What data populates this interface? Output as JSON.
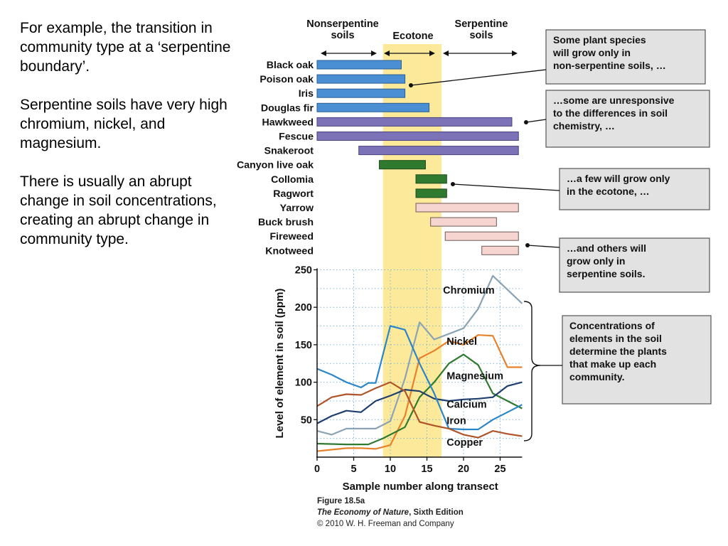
{
  "text_panel": {
    "paragraphs": [
      "For example, the transition in community type at a ‘serpentine boundary’.",
      "Serpentine soils have very high chromium, nickel, and magnesium.",
      "There is usually an abrupt change in soil concentrations, creating an abrupt change in community type."
    ]
  },
  "figure": {
    "zones": {
      "nonserpentine": [
        "Nonserpentine",
        "soils"
      ],
      "ecotone": "Ecotone",
      "serpentine": [
        "Serpentine",
        "soils"
      ]
    },
    "callouts": [
      {
        "lines": [
          "Some plant species",
          "will grow only in",
          "non-serpentine soils, …"
        ]
      },
      {
        "lines": [
          "…some are unresponsive",
          "to the differences in soil",
          "chemistry, …"
        ]
      },
      {
        "lines": [
          "…a few will grow only",
          "in the ecotone, …"
        ]
      },
      {
        "lines": [
          "…and others will",
          "grow only in",
          "serpentine soils."
        ]
      },
      {
        "lines": [
          "Concentrations of",
          "elements in the soil",
          "determine the plants",
          "that make up each",
          "community."
        ]
      }
    ],
    "caption": {
      "figure_label": "Figure 18.5a",
      "book_title": "The Economy of Nature",
      "edition": ", Sixth Edition",
      "copyright": "© 2010 W. H. Freeman and Company"
    }
  },
  "colors": {
    "ecotone": "#fde99a",
    "nonserp_bar": "#4a8fd4",
    "all_bar": "#7b72b8",
    "ecotone_bar": "#2f7a2f",
    "serp_bar": "#f6d5d1",
    "chromium": "#8aa3b5",
    "nickel": "#e8822a",
    "magnesium": "#2f7a2f",
    "calcium": "#1f3f6e",
    "iron": "#2b86c8",
    "copper": "#b0552a",
    "callout_bg": "#e2e2e2"
  },
  "chart_data": [
    {
      "type": "bar",
      "orientation": "horizontal-range",
      "species": [
        {
          "name": "Black oak",
          "start": 0,
          "end": 11.5,
          "group": "nonserpentine"
        },
        {
          "name": "Poison oak",
          "start": 0,
          "end": 12,
          "group": "nonserpentine"
        },
        {
          "name": "Iris",
          "start": 0,
          "end": 12,
          "group": "nonserpentine"
        },
        {
          "name": "Douglas fir",
          "start": 0,
          "end": 15.3,
          "group": "nonserpentine"
        },
        {
          "name": "Hawkweed",
          "start": 0,
          "end": 26.6,
          "group": "all"
        },
        {
          "name": "Fescue",
          "start": 0,
          "end": 27.5,
          "group": "all"
        },
        {
          "name": "Snakeroot",
          "start": 5.7,
          "end": 27.5,
          "group": "all"
        },
        {
          "name": "Canyon live oak",
          "start": 8.5,
          "end": 14.8,
          "group": "ecotone"
        },
        {
          "name": "Collomia",
          "start": 13.5,
          "end": 17.7,
          "group": "ecotone"
        },
        {
          "name": "Ragwort",
          "start": 13.5,
          "end": 17.7,
          "group": "ecotone"
        },
        {
          "name": "Yarrow",
          "start": 13.5,
          "end": 27.5,
          "group": "serpentine"
        },
        {
          "name": "Buck brush",
          "start": 15.5,
          "end": 24.5,
          "group": "serpentine"
        },
        {
          "name": "Fireweed",
          "start": 17.5,
          "end": 27.5,
          "group": "serpentine"
        },
        {
          "name": "Knotweed",
          "start": 22.5,
          "end": 27.5,
          "group": "serpentine"
        }
      ],
      "ecotone_range": [
        9,
        17
      ]
    },
    {
      "type": "line",
      "xlabel": "Sample number along transect",
      "ylabel": "Level of element in soil (ppm)",
      "xlim": [
        0,
        28
      ],
      "ylim": [
        0,
        250
      ],
      "xticks": [
        0,
        5,
        10,
        15,
        20,
        25
      ],
      "yticks": [
        50,
        100,
        150,
        200,
        250
      ],
      "grid": true,
      "series": [
        {
          "name": "Chromium",
          "color_key": "chromium",
          "points": [
            [
              0,
              35
            ],
            [
              2,
              30
            ],
            [
              4,
              38
            ],
            [
              6,
              38
            ],
            [
              8,
              38
            ],
            [
              10,
              48
            ],
            [
              12,
              105
            ],
            [
              14,
              180
            ],
            [
              16,
              157
            ],
            [
              20,
              172
            ],
            [
              22,
              198
            ],
            [
              24,
              242
            ],
            [
              28,
              205
            ]
          ]
        },
        {
          "name": "Nickel",
          "color_key": "nickel",
          "points": [
            [
              0,
              8
            ],
            [
              2,
              10
            ],
            [
              4,
              12
            ],
            [
              6,
              12
            ],
            [
              8,
              11
            ],
            [
              10,
              16
            ],
            [
              12,
              55
            ],
            [
              14,
              132
            ],
            [
              16,
              142
            ],
            [
              18,
              155
            ],
            [
              20,
              150
            ],
            [
              22,
              163
            ],
            [
              24,
              162
            ],
            [
              26,
              120
            ],
            [
              28,
              120
            ]
          ]
        },
        {
          "name": "Magnesium",
          "color_key": "magnesium",
          "points": [
            [
              0,
              18
            ],
            [
              4,
              17
            ],
            [
              7,
              17
            ],
            [
              9,
              25
            ],
            [
              12,
              40
            ],
            [
              14,
              80
            ],
            [
              16,
              100
            ],
            [
              18,
              125
            ],
            [
              20,
              137
            ],
            [
              22,
              123
            ],
            [
              24,
              85
            ],
            [
              26,
              75
            ],
            [
              28,
              65
            ]
          ]
        },
        {
          "name": "Calcium",
          "color_key": "calcium",
          "points": [
            [
              0,
              45
            ],
            [
              2,
              55
            ],
            [
              4,
              62
            ],
            [
              6,
              60
            ],
            [
              8,
              75
            ],
            [
              10,
              82
            ],
            [
              12,
              90
            ],
            [
              14,
              88
            ],
            [
              16,
              78
            ],
            [
              18,
              75
            ],
            [
              20,
              77
            ],
            [
              22,
              78
            ],
            [
              24,
              80
            ],
            [
              26,
              95
            ],
            [
              28,
              100
            ]
          ]
        },
        {
          "name": "Iron",
          "color_key": "iron",
          "points": [
            [
              0,
              118
            ],
            [
              2,
              110
            ],
            [
              4,
              100
            ],
            [
              6,
              93
            ],
            [
              7,
              99
            ],
            [
              8,
              99
            ],
            [
              10,
              175
            ],
            [
              12,
              170
            ],
            [
              14,
              125
            ],
            [
              16,
              85
            ],
            [
              18,
              38
            ],
            [
              20,
              37
            ],
            [
              22,
              37
            ],
            [
              24,
              50
            ],
            [
              26,
              60
            ],
            [
              28,
              70
            ]
          ]
        },
        {
          "name": "Copper",
          "color_key": "copper",
          "points": [
            [
              0,
              68
            ],
            [
              2,
              80
            ],
            [
              4,
              84
            ],
            [
              6,
              83
            ],
            [
              8,
              92
            ],
            [
              10,
              100
            ],
            [
              12,
              88
            ],
            [
              14,
              47
            ],
            [
              16,
              42
            ],
            [
              18,
              38
            ],
            [
              20,
              30
            ],
            [
              22,
              26
            ],
            [
              24,
              35
            ],
            [
              26,
              31
            ],
            [
              28,
              28
            ]
          ]
        }
      ]
    }
  ]
}
